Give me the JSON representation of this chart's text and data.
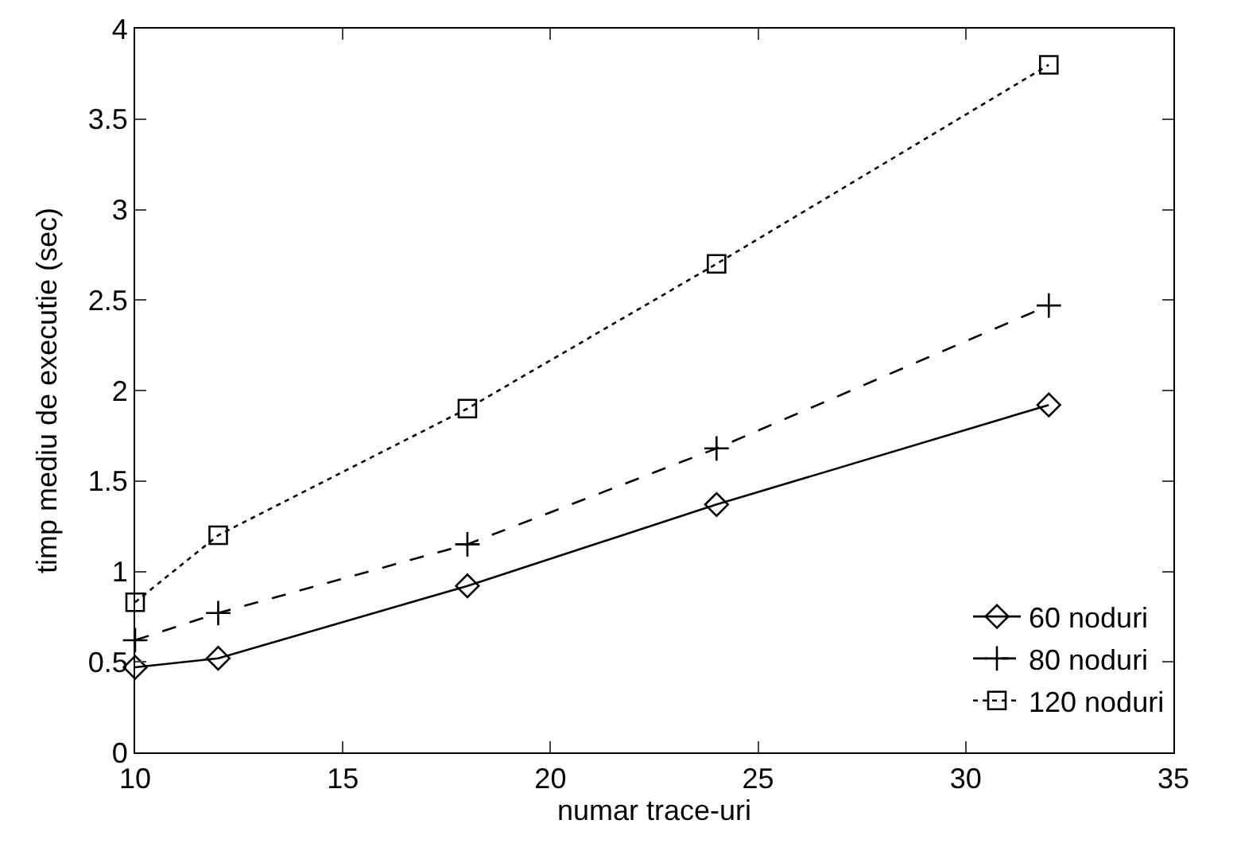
{
  "chart_data": {
    "type": "line",
    "xlabel": "numar trace-uri",
    "ylabel": "timp mediu de executie (sec)",
    "x": [
      10,
      12,
      18,
      24,
      32
    ],
    "series": [
      {
        "name": "60 noduri",
        "color": "#000000",
        "marker": "diamond",
        "line_style": "solid",
        "values": [
          0.47,
          0.52,
          0.92,
          1.37,
          1.92
        ]
      },
      {
        "name": "80 noduri",
        "color": "#000000",
        "marker": "cross",
        "line_style": "dashed",
        "values": [
          0.62,
          0.77,
          1.15,
          1.68,
          2.47
        ]
      },
      {
        "name": "120 noduri",
        "color": "#000000",
        "marker": "square",
        "line_style": "dotted",
        "values": [
          0.83,
          1.2,
          1.9,
          2.7,
          3.8
        ]
      }
    ],
    "xlim": [
      10,
      35
    ],
    "xticks": [
      10,
      15,
      20,
      25,
      30,
      35
    ],
    "ylim": [
      0,
      4
    ],
    "yticks": [
      0,
      0.5,
      1,
      1.5,
      2,
      2.5,
      3,
      3.5,
      4
    ],
    "grid": false,
    "legend": "bottom right"
  }
}
